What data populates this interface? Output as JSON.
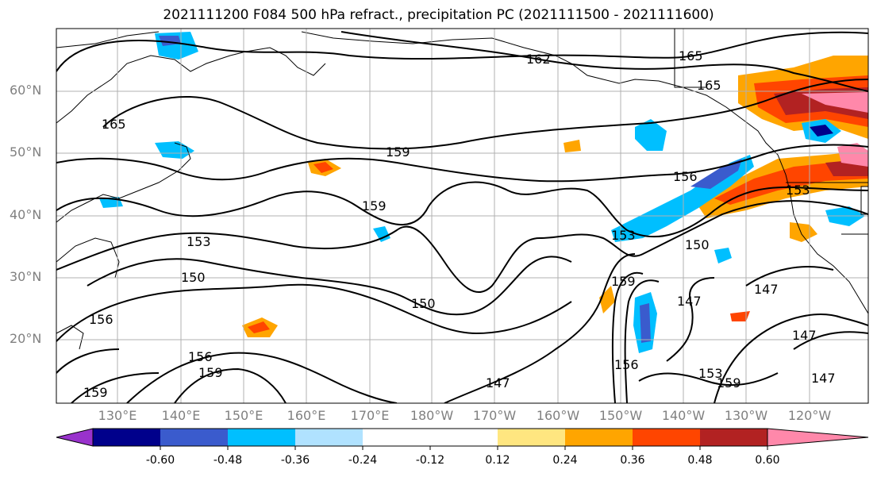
{
  "title": "2021111200 F084 500 hPa refract., precipitation PC (2021111500 - 2021111600)",
  "lat_labels": [
    "60°N",
    "50°N",
    "40°N",
    "30°N",
    "20°N"
  ],
  "lon_labels": [
    "130°E",
    "140°E",
    "150°E",
    "160°E",
    "170°E",
    "180°W",
    "170°W",
    "160°W",
    "150°W",
    "140°W",
    "130°W",
    "120°W"
  ],
  "contour_labels": [
    "162",
    "165",
    "165",
    "165",
    "159",
    "159",
    "156",
    "153",
    "153",
    "153",
    "150",
    "150",
    "150",
    "159",
    "156",
    "159",
    "156",
    "159",
    "147",
    "147",
    "147",
    "147",
    "147",
    "156",
    "153",
    "159"
  ],
  "colorbar": {
    "colors": [
      "#9932cc",
      "#00008b",
      "#3a5bcd",
      "#00bfff",
      "#b0e2ff",
      "#ffffff",
      "#ffe680",
      "#ffa500",
      "#ff4500",
      "#b22222",
      "#ff88aa"
    ],
    "tick_labels": [
      "-0.60",
      "-0.48",
      "-0.36",
      "-0.24",
      "-0.12",
      "0.12",
      "0.24",
      "0.36",
      "0.48",
      "0.60"
    ]
  }
}
